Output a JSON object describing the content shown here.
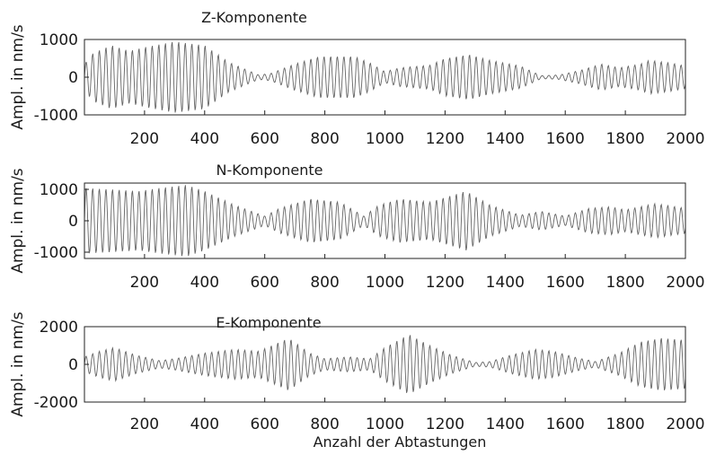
{
  "chart_data": [
    {
      "type": "line",
      "title": "Z-Komponente",
      "ylabel": "Ampl. in nm/s",
      "xlabel": "",
      "xlim": [
        0,
        2000
      ],
      "ylim": [
        -1000,
        1000
      ],
      "xticks": [
        "200",
        "400",
        "600",
        "800",
        "1000",
        "1200",
        "1400",
        "1600",
        "1800",
        "2000"
      ],
      "yticks": [
        "1000",
        "0",
        "-1000"
      ],
      "ytick_values": [
        1000,
        0,
        -1000
      ],
      "grid": false,
      "series": [
        {
          "color": "#4a4a4a",
          "envelope_x": [
            0,
            30,
            90,
            150,
            200,
            300,
            400,
            480,
            580,
            620,
            700,
            780,
            900,
            950,
            1000,
            1050,
            1150,
            1200,
            1280,
            1350,
            1450,
            1520,
            1580,
            1650,
            1720,
            1780,
            1850,
            1880,
            1950,
            2000
          ],
          "envelope_amp": [
            350,
            650,
            850,
            700,
            800,
            950,
            850,
            400,
            60,
            100,
            350,
            550,
            550,
            380,
            150,
            250,
            320,
            500,
            600,
            450,
            300,
            40,
            60,
            180,
            350,
            250,
            350,
            450,
            380,
            300
          ]
        }
      ]
    },
    {
      "type": "line",
      "title": "N-Komponente",
      "ylabel": "Ampl. in nm/s",
      "xlabel": "",
      "xlim": [
        0,
        2000
      ],
      "ylim": [
        -1200,
        1200
      ],
      "xticks": [
        "200",
        "400",
        "600",
        "800",
        "1000",
        "1200",
        "1400",
        "1600",
        "1800",
        "2000"
      ],
      "yticks": [
        "1000",
        "0",
        "-1000"
      ],
      "ytick_values": [
        1000,
        0,
        -1000
      ],
      "grid": false,
      "series": [
        {
          "color": "#4a4a4a",
          "envelope_x": [
            0,
            100,
            180,
            250,
            340,
            400,
            500,
            600,
            650,
            750,
            850,
            930,
            980,
            1050,
            1150,
            1270,
            1350,
            1450,
            1520,
            1600,
            1680,
            1750,
            1800,
            1900,
            2000
          ],
          "envelope_amp": [
            1050,
            1000,
            950,
            1050,
            1150,
            950,
            500,
            150,
            400,
            700,
            600,
            150,
            500,
            700,
            600,
            950,
            500,
            180,
            300,
            150,
            400,
            450,
            350,
            550,
            400
          ]
        }
      ]
    },
    {
      "type": "line",
      "title": "E-Komponente",
      "ylabel": "Ampl. in nm/s",
      "xlabel": "Anzahl der Abtastungen",
      "xlim": [
        0,
        2000
      ],
      "ylim": [
        -2000,
        2000
      ],
      "xticks": [
        "200",
        "400",
        "600",
        "800",
        "1000",
        "1200",
        "1400",
        "1600",
        "1800",
        "2000"
      ],
      "yticks": [
        "2000",
        "0",
        "-2000"
      ],
      "ytick_values": [
        2000,
        0,
        -2000
      ],
      "grid": false,
      "series": [
        {
          "color": "#4a4a4a",
          "envelope_x": [
            0,
            50,
            100,
            170,
            250,
            300,
            400,
            500,
            580,
            680,
            750,
            800,
            880,
            950,
            1000,
            1080,
            1150,
            1220,
            1300,
            1350,
            1420,
            1500,
            1560,
            1640,
            1700,
            1780,
            1850,
            1920,
            2000
          ],
          "envelope_amp": [
            400,
            700,
            900,
            500,
            200,
            300,
            600,
            800,
            700,
            1400,
            600,
            300,
            400,
            300,
            900,
            1600,
            1000,
            500,
            100,
            150,
            500,
            800,
            700,
            350,
            150,
            600,
            1200,
            1400,
            1300
          ]
        }
      ]
    }
  ]
}
